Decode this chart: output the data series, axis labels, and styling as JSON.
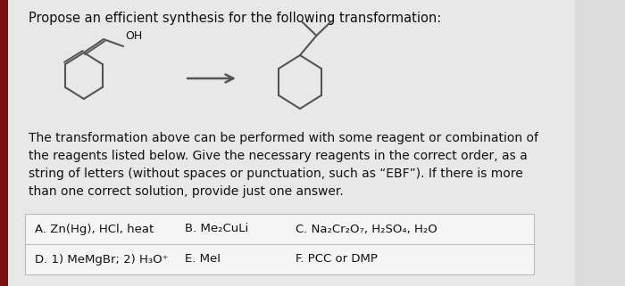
{
  "title": "Propose an efficient synthesis for the following transformation:",
  "title_fontsize": 10.5,
  "body_text": "The transformation above can be performed with some reagent or combination of\nthe reagents listed below. Give the necessary reagents in the correct order, as a\nstring of letters (without spaces or punctuation, such as “EBF”). If there is more\nthan one correct solution, provide just one answer.",
  "body_fontsize": 10,
  "reagents": [
    [
      "A. Zn(Hg), HCl, heat",
      "B. Me₂CuLi",
      "C. Na₂Cr₂O₇, H₂SO₄, H₂O"
    ],
    [
      "D. 1) MeMgBr; 2) H₃O⁺",
      "E. MeI",
      "F. PCC or DMP"
    ]
  ],
  "background_color": "#dcdcdc",
  "main_bg": "#e8e8e8",
  "box_bg": "#f5f5f5",
  "text_color": "#111111",
  "left_bar_color": "#7a1010",
  "arrow_color": "#555555",
  "line_color": "#555555",
  "reagent_fontsize": 9.5,
  "body_fontsize2": 10,
  "box_border": "#bbbbbb"
}
